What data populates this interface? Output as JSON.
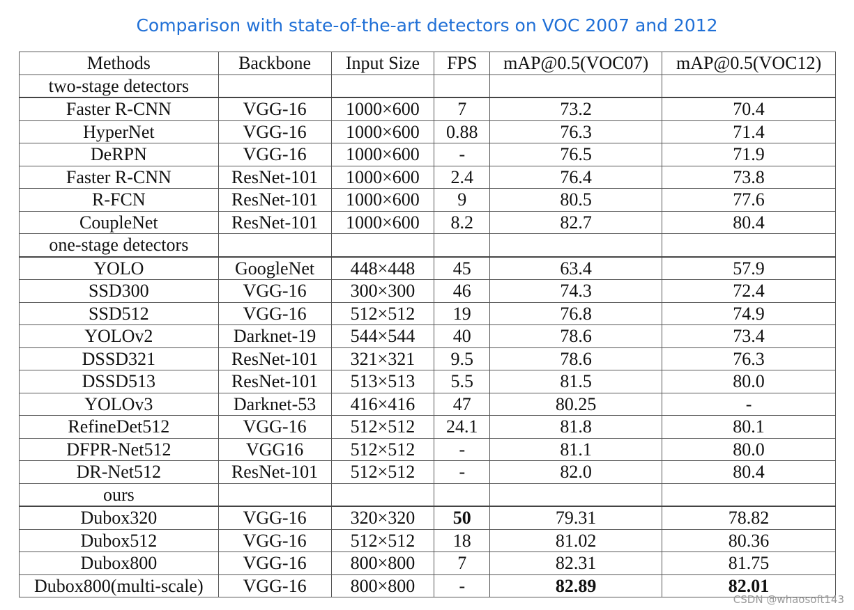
{
  "header": {
    "title": "Comparison with state-of-the-art detectors on VOC 2007 and 2012"
  },
  "table": {
    "columns": [
      "Methods",
      "Backbone",
      "Input Size",
      "FPS",
      "mAP@0.5(VOC07)",
      "mAP@0.5(VOC12)"
    ],
    "sections": [
      {
        "label": "two-stage detectors",
        "rows": [
          [
            "Faster R-CNN",
            "VGG-16",
            "1000×600",
            "7",
            "73.2",
            "70.4"
          ],
          [
            "HyperNet",
            "VGG-16",
            "1000×600",
            "0.88",
            "76.3",
            "71.4"
          ],
          [
            "DeRPN",
            "VGG-16",
            "1000×600",
            "-",
            "76.5",
            "71.9"
          ],
          [
            "Faster R-CNN",
            "ResNet-101",
            "1000×600",
            "2.4",
            "76.4",
            "73.8"
          ],
          [
            "R-FCN",
            "ResNet-101",
            "1000×600",
            "9",
            "80.5",
            "77.6"
          ],
          [
            "CoupleNet",
            "ResNet-101",
            "1000×600",
            "8.2",
            "82.7",
            "80.4"
          ]
        ]
      },
      {
        "label": "one-stage detectors",
        "rows": [
          [
            "YOLO",
            "GoogleNet",
            "448×448",
            "45",
            "63.4",
            "57.9"
          ],
          [
            "SSD300",
            "VGG-16",
            "300×300",
            "46",
            "74.3",
            "72.4"
          ],
          [
            "SSD512",
            "VGG-16",
            "512×512",
            "19",
            "76.8",
            "74.9"
          ],
          [
            "YOLOv2",
            "Darknet-19",
            "544×544",
            "40",
            "78.6",
            "73.4"
          ],
          [
            "DSSD321",
            "ResNet-101",
            "321×321",
            "9.5",
            "78.6",
            "76.3"
          ],
          [
            "DSSD513",
            "ResNet-101",
            "513×513",
            "5.5",
            "81.5",
            "80.0"
          ],
          [
            "YOLOv3",
            "Darknet-53",
            "416×416",
            "47",
            "80.25",
            "-"
          ],
          [
            "RefineDet512",
            "VGG-16",
            "512×512",
            "24.1",
            "81.8",
            "80.1"
          ],
          [
            "DFPR-Net512",
            "VGG16",
            "512×512",
            "-",
            "81.1",
            "80.0"
          ],
          [
            "DR-Net512",
            "ResNet-101",
            "512×512",
            "-",
            "82.0",
            "80.4"
          ]
        ]
      },
      {
        "label": "ours",
        "rows": [
          [
            "Dubox320",
            "VGG-16",
            "320×320",
            {
              "text": "50",
              "bold": true
            },
            "79.31",
            "78.82"
          ],
          [
            "Dubox512",
            "VGG-16",
            "512×512",
            "18",
            "81.02",
            "80.36"
          ],
          [
            "Dubox800",
            "VGG-16",
            "800×800",
            "7",
            "82.31",
            "81.75"
          ],
          [
            "Dubox800(multi-scale)",
            "VGG-16",
            "800×800",
            "-",
            {
              "text": "82.89",
              "bold": true
            },
            {
              "text": "82.01",
              "bold": true
            }
          ]
        ]
      }
    ]
  },
  "watermark": "CSDN @whaosoft143"
}
